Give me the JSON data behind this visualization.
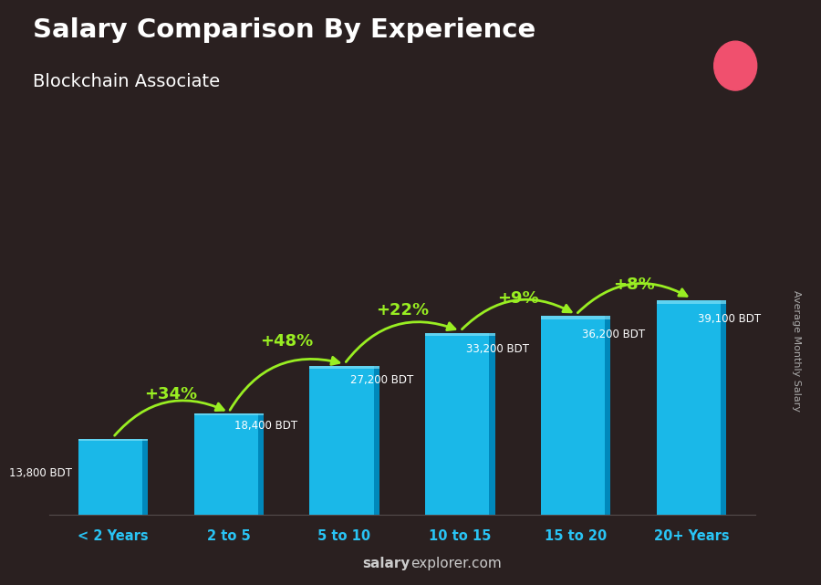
{
  "title": "Salary Comparison By Experience",
  "subtitle": "Blockchain Associate",
  "categories": [
    "< 2 Years",
    "2 to 5",
    "5 to 10",
    "10 to 15",
    "15 to 20",
    "20+ Years"
  ],
  "values": [
    13800,
    18400,
    27200,
    33200,
    36200,
    39100
  ],
  "salary_labels": [
    "13,800 BDT",
    "18,400 BDT",
    "27,200 BDT",
    "33,200 BDT",
    "36,200 BDT",
    "39,100 BDT"
  ],
  "pct_changes": [
    "+34%",
    "+48%",
    "+22%",
    "+9%",
    "+8%"
  ],
  "bar_color": "#29c4f5",
  "bar_edge_color": "#5dd8fa",
  "background_color": "#2a2020",
  "text_color": "#ffffff",
  "pct_color": "#99ee22",
  "salary_label_color": "#ffffff",
  "xlabel_color": "#29c4f5",
  "watermark_salary": "salary",
  "watermark_rest": "explorer.com",
  "right_label": "Average Monthly Salary",
  "flag_green": "#6ab04c",
  "flag_red": "#f0506e",
  "arrow_color": "#99ee22"
}
